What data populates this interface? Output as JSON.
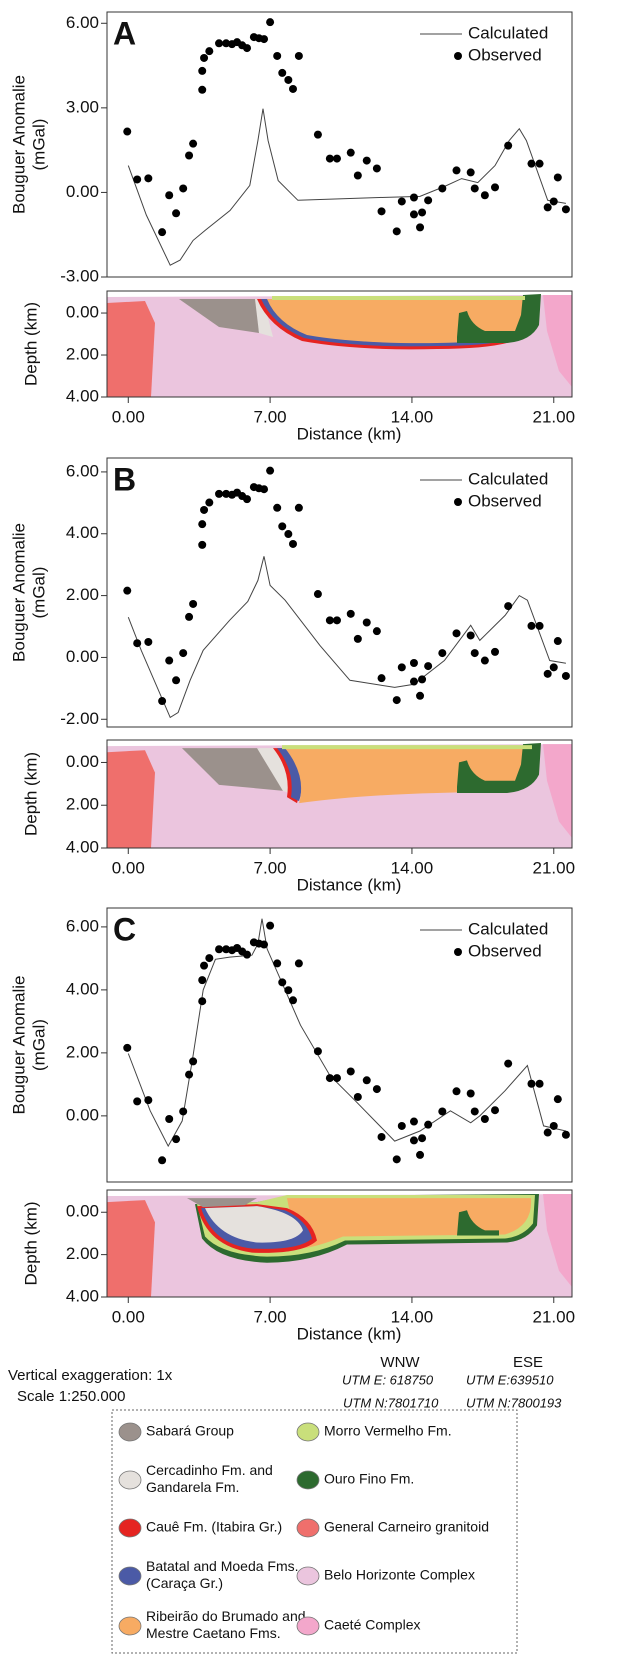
{
  "chart_data": [
    {
      "type": "line",
      "label": "A",
      "ylabel": "Bouguer Anomalie",
      "ylabel_unit": "(mGal)",
      "xlim": [
        -1.05,
        21.9
      ],
      "ylim": [
        -3,
        6.4
      ],
      "yticks": [
        {
          "value": 6,
          "label": "6.00"
        },
        {
          "value": 3,
          "label": "3.00"
        },
        {
          "value": 0,
          "label": "0.00"
        },
        {
          "value": -3,
          "label": "-3.00"
        }
      ],
      "series": [
        {
          "name": "Calculated",
          "type": "line",
          "color": "#444444",
          "x": [
            0,
            0.89,
            2.07,
            2.56,
            3.2,
            3.8,
            5.02,
            6.0,
            6.4,
            6.65,
            6.9,
            7.4,
            8.37,
            12.4,
            14.4,
            15.6,
            16.45,
            17.25,
            18.1,
            18.8,
            19.3,
            19.65,
            20.7,
            21.6
          ],
          "values": [
            0.95,
            -0.8,
            -2.58,
            -2.4,
            -1.7,
            -1.34,
            -0.64,
            0.25,
            1.84,
            2.97,
            1.84,
            0.42,
            -0.28,
            -0.18,
            -0.14,
            0.21,
            0.49,
            0.35,
            0.95,
            1.84,
            2.26,
            1.84,
            -0.28,
            -0.39
          ]
        },
        {
          "name": "Observed",
          "type": "scatter",
          "color": "#000000",
          "x": [
            -0.05,
            0.44,
            0.99,
            1.67,
            2.02,
            2.36,
            2.71,
            3.0,
            3.2,
            3.65,
            3.65,
            3.74,
            4.0,
            4.48,
            4.83,
            5.12,
            5.37,
            5.62,
            5.86,
            6.2,
            6.45,
            6.7,
            7.0,
            7.35,
            7.6,
            7.9,
            8.13,
            8.42,
            9.36,
            9.95,
            10.3,
            10.98,
            11.33,
            11.77,
            12.27,
            12.5,
            13.25,
            13.5,
            14.1,
            14.1,
            14.4,
            14.5,
            14.8,
            15.5,
            16.2,
            16.9,
            17.1,
            17.6,
            18.1,
            18.75,
            19.9,
            20.3,
            20.7,
            21.0,
            21.2,
            21.6
          ],
          "values": [
            2.16,
            0.46,
            0.5,
            -1.41,
            -0.1,
            -0.74,
            0.14,
            1.31,
            1.73,
            3.64,
            4.31,
            4.77,
            5.01,
            5.29,
            5.29,
            5.26,
            5.33,
            5.22,
            5.12,
            5.51,
            5.47,
            5.44,
            6.04,
            4.84,
            4.24,
            3.99,
            3.67,
            4.84,
            2.05,
            1.2,
            1.2,
            1.41,
            0.6,
            1.13,
            0.85,
            -0.67,
            -1.38,
            -0.32,
            -0.18,
            -0.78,
            -1.24,
            -0.71,
            -0.28,
            0.14,
            0.78,
            0.71,
            0.14,
            -0.1,
            0.18,
            1.66,
            1.02,
            1.02,
            -0.53,
            -0.32,
            0.53,
            -0.6
          ]
        }
      ],
      "section": {
        "ylabel": "Depth (km)",
        "xlabel": "Distance (km)",
        "ylim": [
          -1.05,
          4
        ],
        "inverted": true,
        "yticks": [
          {
            "value": 0,
            "label": "0.00"
          },
          {
            "value": 2,
            "label": "2.00"
          },
          {
            "value": 4,
            "label": "4.00"
          }
        ],
        "xticks": [
          {
            "value": 0,
            "label": "0.00"
          },
          {
            "value": 7,
            "label": "7.00"
          },
          {
            "value": 14,
            "label": "14.00"
          },
          {
            "value": 21,
            "label": "21.00"
          }
        ]
      }
    },
    {
      "type": "line",
      "label": "B",
      "ylabel": "Bouguer Anomalie",
      "ylabel_unit": "(mGal)",
      "xlim": [
        -1.05,
        21.9
      ],
      "ylim": [
        -2.25,
        6.45
      ],
      "yticks": [
        {
          "value": 6,
          "label": "6.00"
        },
        {
          "value": 4,
          "label": "4.00"
        },
        {
          "value": 2,
          "label": "2.00"
        },
        {
          "value": 0,
          "label": "0.00"
        },
        {
          "value": -2,
          "label": "-2.00"
        }
      ],
      "series": [
        {
          "name": "Calculated",
          "type": "line",
          "color": "#444444",
          "x": [
            0,
            0.64,
            2.07,
            2.46,
            3.05,
            3.7,
            5.0,
            5.9,
            6.4,
            6.7,
            7.0,
            7.74,
            9.46,
            10.94,
            13.15,
            14.1,
            15.6,
            16.9,
            17.35,
            18.6,
            19.3,
            19.7,
            20.8,
            21.6
          ],
          "values": [
            1.3,
            0.23,
            -1.94,
            -1.78,
            -0.74,
            0.23,
            1.2,
            1.81,
            2.49,
            3.27,
            2.33,
            1.85,
            0.39,
            -0.74,
            -0.97,
            -0.87,
            -0.1,
            1.04,
            0.55,
            1.36,
            2.0,
            1.85,
            -0.1,
            -0.19
          ]
        },
        {
          "name": "Observed",
          "type": "scatter",
          "color": "#000000",
          "x": [
            -0.05,
            0.44,
            0.99,
            1.67,
            2.02,
            2.36,
            2.71,
            3.0,
            3.2,
            3.65,
            3.65,
            3.74,
            4.0,
            4.48,
            4.83,
            5.12,
            5.37,
            5.62,
            5.86,
            6.2,
            6.45,
            6.7,
            7.0,
            7.35,
            7.6,
            7.9,
            8.13,
            8.42,
            9.36,
            9.95,
            10.3,
            10.98,
            11.33,
            11.77,
            12.27,
            12.5,
            13.25,
            13.5,
            14.1,
            14.1,
            14.4,
            14.5,
            14.8,
            15.5,
            16.2,
            16.9,
            17.1,
            17.6,
            18.1,
            18.75,
            19.9,
            20.3,
            20.7,
            21.0,
            21.2,
            21.6
          ],
          "values": [
            2.16,
            0.46,
            0.5,
            -1.41,
            -0.1,
            -0.74,
            0.14,
            1.31,
            1.73,
            3.64,
            4.31,
            4.77,
            5.01,
            5.29,
            5.29,
            5.26,
            5.33,
            5.22,
            5.12,
            5.51,
            5.47,
            5.44,
            6.04,
            4.84,
            4.24,
            3.99,
            3.67,
            4.84,
            2.05,
            1.2,
            1.2,
            1.41,
            0.6,
            1.13,
            0.85,
            -0.67,
            -1.38,
            -0.32,
            -0.18,
            -0.78,
            -1.24,
            -0.71,
            -0.28,
            0.14,
            0.78,
            0.71,
            0.14,
            -0.1,
            0.18,
            1.66,
            1.02,
            1.02,
            -0.53,
            -0.32,
            0.53,
            -0.6
          ]
        }
      ],
      "section": {
        "ylabel": "Depth (km)",
        "xlabel": "Distance (km)",
        "ylim": [
          -1.05,
          4
        ],
        "inverted": true,
        "yticks": [
          {
            "value": 0,
            "label": "0.00"
          },
          {
            "value": 2,
            "label": "2.00"
          },
          {
            "value": 4,
            "label": "4.00"
          }
        ],
        "xticks": [
          {
            "value": 0,
            "label": "0.00"
          },
          {
            "value": 7,
            "label": "7.00"
          },
          {
            "value": 14,
            "label": "14.00"
          },
          {
            "value": 21,
            "label": "21.00"
          }
        ]
      }
    },
    {
      "type": "line",
      "label": "C",
      "ylabel": "Bouguer Anomalie",
      "ylabel_unit": "(mGal)",
      "xlim": [
        -1.05,
        21.9
      ],
      "ylim": [
        -2.1,
        6.6
      ],
      "yticks": [
        {
          "value": 6,
          "label": "6.00"
        },
        {
          "value": 4,
          "label": "4.00"
        },
        {
          "value": 2,
          "label": "2.00"
        },
        {
          "value": 0,
          "label": "0.00"
        }
      ],
      "series": [
        {
          "name": "Calculated",
          "type": "line",
          "color": "#444444",
          "x": [
            0,
            1.08,
            1.97,
            2.66,
            3.2,
            3.7,
            4.3,
            5.0,
            6.1,
            6.4,
            6.6,
            6.85,
            7.74,
            8.5,
            9.95,
            11.2,
            13.15,
            14.4,
            15.9,
            16.9,
            17.35,
            18.6,
            19.7,
            20.5,
            21.6
          ],
          "values": [
            1.98,
            0.16,
            -0.96,
            -0.16,
            1.92,
            4.0,
            4.97,
            5.04,
            5.1,
            5.46,
            6.26,
            5.3,
            4.0,
            2.88,
            1.28,
            0.48,
            -0.8,
            -0.48,
            0.16,
            -0.22,
            0,
            0.8,
            1.6,
            -0.32,
            -0.48
          ]
        },
        {
          "name": "Observed",
          "type": "scatter",
          "color": "#000000",
          "x": [
            -0.05,
            0.44,
            0.99,
            1.67,
            2.02,
            2.36,
            2.71,
            3.0,
            3.2,
            3.65,
            3.65,
            3.74,
            4.0,
            4.48,
            4.83,
            5.12,
            5.37,
            5.62,
            5.86,
            6.2,
            6.45,
            6.7,
            7.0,
            7.35,
            7.6,
            7.9,
            8.13,
            8.42,
            9.36,
            9.95,
            10.3,
            10.98,
            11.33,
            11.77,
            12.27,
            12.5,
            13.25,
            13.5,
            14.1,
            14.1,
            14.4,
            14.5,
            14.8,
            15.5,
            16.2,
            16.9,
            17.1,
            17.6,
            18.1,
            18.75,
            19.9,
            20.3,
            20.7,
            21.0,
            21.2,
            21.6
          ],
          "values": [
            2.16,
            0.46,
            0.5,
            -1.41,
            -0.1,
            -0.74,
            0.14,
            1.31,
            1.73,
            3.64,
            4.31,
            4.77,
            5.01,
            5.29,
            5.29,
            5.26,
            5.33,
            5.22,
            5.12,
            5.51,
            5.47,
            5.44,
            6.04,
            4.84,
            4.24,
            3.99,
            3.67,
            4.84,
            2.05,
            1.2,
            1.2,
            1.41,
            0.6,
            1.13,
            0.85,
            -0.67,
            -1.38,
            -0.32,
            -0.18,
            -0.78,
            -1.24,
            -0.71,
            -0.28,
            0.14,
            0.78,
            0.71,
            0.14,
            -0.1,
            0.18,
            1.66,
            1.02,
            1.02,
            -0.53,
            -0.32,
            0.53,
            -0.6
          ]
        }
      ],
      "section": {
        "ylabel": "Depth (km)",
        "xlabel": "Distance (km)",
        "ylim": [
          -1.05,
          4
        ],
        "inverted": true,
        "yticks": [
          {
            "value": 0,
            "label": "0.00"
          },
          {
            "value": 2,
            "label": "2.00"
          },
          {
            "value": 4,
            "label": "4.00"
          }
        ],
        "xticks": [
          {
            "value": 0,
            "label": "0.00"
          },
          {
            "value": 7,
            "label": "7.00"
          },
          {
            "value": 14,
            "label": "14.00"
          },
          {
            "value": 21,
            "label": "21.00"
          }
        ]
      }
    }
  ],
  "footer": {
    "exaggeration": "Vertical exaggeration: 1x",
    "scale": "Scale 1:250.000",
    "west": "WNW",
    "east": "ESE",
    "west_e": "UTM E: 618750",
    "east_e": "UTM E:639510",
    "west_n": "UTM N:7801710",
    "east_n": "UTM N:7800193"
  },
  "legend": {
    "items": [
      {
        "label": [
          "Sabará Group"
        ],
        "color": "#9b918c"
      },
      {
        "label": [
          "Cercadinho Fm. and",
          "Gandarela Fm."
        ],
        "color": "#e5e1dd"
      },
      {
        "label": [
          "Cauê Fm. (Itabira Gr.)"
        ],
        "color": "#e52421"
      },
      {
        "label": [
          "Batatal and Moeda Fms.",
          "(Caraça Gr.)"
        ],
        "color": "#4b5aa6"
      },
      {
        "label": [
          "Ribeirão do Brumado and",
          "Mestre Caetano Fms."
        ],
        "color": "#f7ab63"
      },
      {
        "label": [
          "Morro Vermelho Fm."
        ],
        "color": "#c9df7b"
      },
      {
        "label": [
          "Ouro Fino Fm."
        ],
        "color": "#2d6a2f"
      },
      {
        "label": [
          "General Carneiro granitoid"
        ],
        "color": "#ef6f6c"
      },
      {
        "label": [
          "Belo Horizonte Complex"
        ],
        "color": "#ebc5de"
      },
      {
        "label": [
          "Caeté Complex"
        ],
        "color": "#f3a7cb"
      }
    ]
  }
}
